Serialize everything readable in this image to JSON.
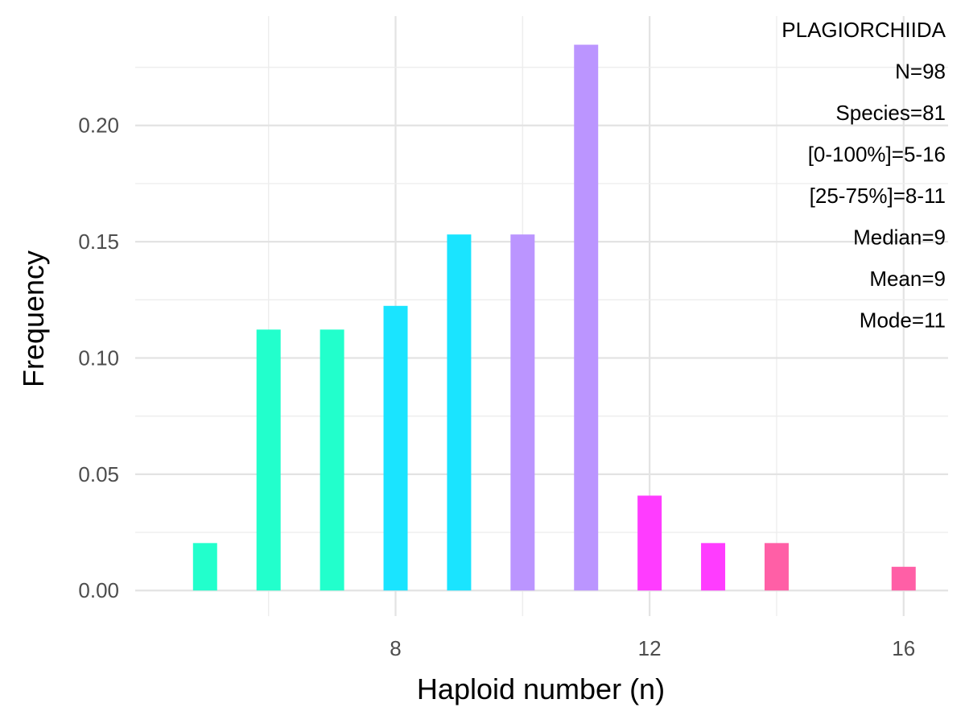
{
  "chart_data": {
    "type": "bar",
    "xlabel": "Haploid number (n)",
    "ylabel": "Frequency",
    "x_ticks": [
      8,
      12,
      16
    ],
    "y_ticks": [
      "0.00",
      "0.05",
      "0.10",
      "0.15",
      "0.20"
    ],
    "xlim": [
      3.9,
      16.7
    ],
    "ylim": [
      -0.011,
      0.247
    ],
    "grid": true,
    "bars": [
      {
        "x": 5,
        "value": 0.0204,
        "color": "#22FFCC"
      },
      {
        "x": 6,
        "value": 0.1122,
        "color": "#22FFCC"
      },
      {
        "x": 7,
        "value": 0.1122,
        "color": "#22FFCC"
      },
      {
        "x": 8,
        "value": 0.1224,
        "color": "#1AE4FF"
      },
      {
        "x": 9,
        "value": 0.1531,
        "color": "#1AE4FF"
      },
      {
        "x": 10,
        "value": 0.1531,
        "color": "#BB95FF"
      },
      {
        "x": 11,
        "value": 0.2347,
        "color": "#BB95FF"
      },
      {
        "x": 12,
        "value": 0.0408,
        "color": "#FF3CFF"
      },
      {
        "x": 13,
        "value": 0.0204,
        "color": "#FF3CFF"
      },
      {
        "x": 14,
        "value": 0.0204,
        "color": "#FF5FA6"
      },
      {
        "x": 16,
        "value": 0.0102,
        "color": "#FF5FA6"
      }
    ],
    "annotations": [
      "PLAGIORCHIIDA",
      "N=98",
      "Species=81",
      "[0-100%]=5-16",
      "[25-75%]=8-11",
      "Median=9",
      "Mean=9",
      "Mode=11"
    ]
  }
}
